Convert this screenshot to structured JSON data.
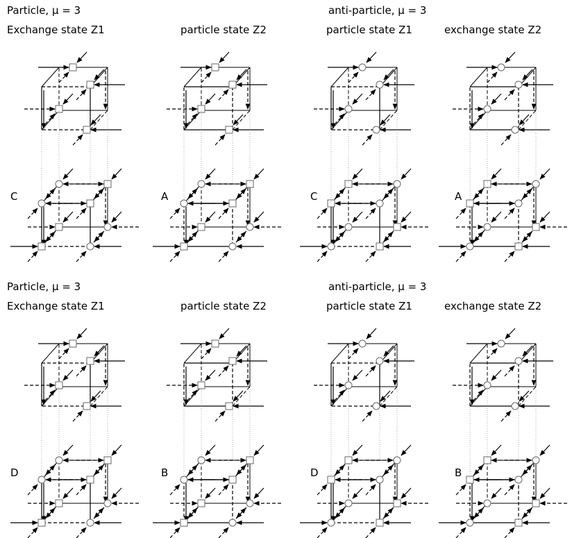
{
  "rows": [
    {
      "groups": [
        {
          "heading": "Particle, μ = 3",
          "states": [
            "Exchange state Z1",
            "particle state Z2"
          ],
          "labels": [
            "C",
            "A"
          ]
        },
        {
          "heading": "anti-particle, μ = 3",
          "states": [
            "particle state Z1",
            "exchange state Z2"
          ],
          "labels": [
            "C",
            "A"
          ]
        }
      ]
    },
    {
      "groups": [
        {
          "heading": "Particle, μ = 3",
          "states": [
            "Exchange state Z1",
            "particle state Z2"
          ],
          "labels": [
            "D",
            "B"
          ]
        },
        {
          "heading": "anti-particle, μ = 3",
          "states": [
            "particle state Z1",
            "exchange state Z2"
          ],
          "labels": [
            "D",
            "B"
          ]
        }
      ]
    }
  ]
}
